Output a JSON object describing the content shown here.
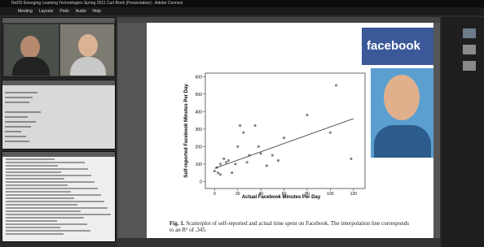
{
  "window": {
    "title": "ReDS Emerging Learning Technologies Spring 2011 Curt Bonk (Presentation) - Adobe Connect"
  },
  "menu": [
    "Meeting",
    "Layouts",
    "Pods",
    "Audio",
    "Help"
  ],
  "slide": {
    "logo": "facebook",
    "caption_label": "Fig. 1.",
    "caption_text": "Scatterplot of self-reported and actual time spent on Facebook. The interpolation line corresponds to an R² of .345.",
    "chart": {
      "type": "scatter",
      "x_label": "Actual Facebook Minutes Per Day",
      "y_label": "Self-reported Facebook Minutes Per Day",
      "x": [
        0,
        2,
        3,
        5,
        5,
        8,
        10,
        12,
        15,
        18,
        20,
        22,
        25,
        28,
        30,
        35,
        38,
        40,
        45,
        50,
        55,
        60,
        80,
        100,
        105,
        118
      ],
      "values": [
        60,
        80,
        50,
        100,
        40,
        130,
        110,
        120,
        50,
        100,
        200,
        320,
        280,
        110,
        150,
        320,
        200,
        160,
        90,
        150,
        120,
        250,
        380,
        280,
        550,
        130
      ],
      "trend_x": [
        0,
        120
      ],
      "trend_y": [
        75,
        360
      ],
      "xlim": [
        -8,
        130
      ],
      "ylim": [
        -40,
        620
      ],
      "xticks": [
        0,
        20,
        40,
        60,
        80,
        100,
        120
      ],
      "yticks": [
        0,
        100,
        200,
        300,
        400,
        500,
        600
      ]
    }
  }
}
